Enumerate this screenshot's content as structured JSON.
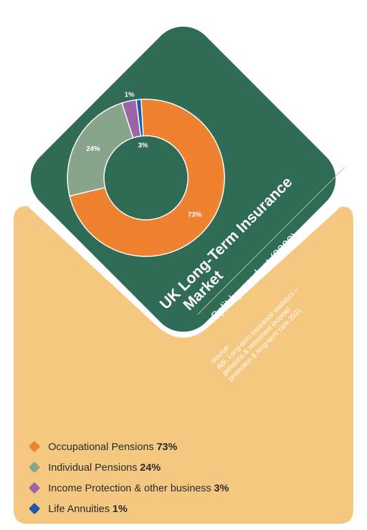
{
  "chart_data": {
    "type": "pie",
    "title": "UK Long-Term Insurance Market",
    "subtitle": "Split by product (2022)",
    "source_lines": [
      "Source:",
      "ABI, Long-term insurance statistics –",
      "pensions & retirement income/",
      "protection & long-term care 2021"
    ],
    "categories": [
      "Occupational Pensions",
      "Individual Pensions",
      "Income Protection & other business",
      "Life Annuities"
    ],
    "values": [
      73,
      24,
      3,
      1
    ],
    "value_labels": [
      "73%",
      "24%",
      "3%",
      "1%"
    ],
    "colors": [
      "#ee8230",
      "#8aa48c",
      "#9b65a8",
      "#1f5aa6"
    ],
    "legend_position": "bottom-left"
  },
  "colors": {
    "green_card": "#2f6b55",
    "tan_panel": "#f5c882",
    "white": "#ffffff"
  }
}
